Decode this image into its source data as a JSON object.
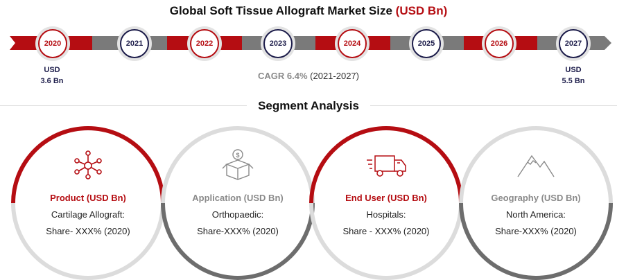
{
  "header": {
    "title_main": "Global Soft Tissue Allograft Market Size",
    "title_unit": "(USD Bn)"
  },
  "timeline": {
    "years": [
      "2020",
      "2021",
      "2022",
      "2023",
      "2024",
      "2025",
      "2026",
      "2027"
    ],
    "start": {
      "label": "USD",
      "value": "3.6 Bn"
    },
    "end": {
      "label": "USD",
      "value": "5.5 Bn"
    },
    "cagr_value": "CAGR 6.4%",
    "cagr_period": "(2021-2027)"
  },
  "segment_analysis": {
    "title": "Segment Analysis",
    "cards": [
      {
        "name": "Product (USD Bn)",
        "line1": "Cartilage Allograft:",
        "line2": "Share- XXX% (2020)",
        "icon": "molecule-network-icon"
      },
      {
        "name": "Application (USD Bn)",
        "line1": "Orthopaedic:",
        "line2": "Share-XXX% (2020)",
        "icon": "dollar-box-icon"
      },
      {
        "name": "End User (USD Bn)",
        "line1": "Hospitals:",
        "line2": "Share - XXX% (2020)",
        "icon": "delivery-truck-icon"
      },
      {
        "name": "Geography (USD Bn)",
        "line1": "North America:",
        "line2": "Share-XXX% (2020)",
        "icon": "mountain-icon"
      }
    ]
  },
  "colors": {
    "accent_red": "#b50d12",
    "navy": "#1c1c4a",
    "gray": "#8a8a8a",
    "ring_light": "#dcdcdc",
    "ring_dark": "#6d6d6d"
  }
}
